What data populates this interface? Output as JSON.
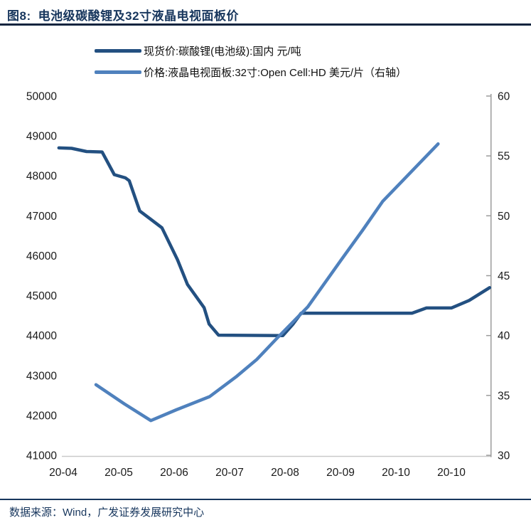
{
  "header": {
    "figure_label": "图8:",
    "title": "电池级碳酸锂及32寸液晶电视面板价"
  },
  "footer": {
    "source": "数据来源：Wind，广发证券发展研究中心"
  },
  "colors": {
    "accent_text": "#17365d",
    "dark_series": "#235081",
    "light_series": "#4f81bd",
    "right_axis_line": "#9b9b9b",
    "bottom_axis_line": "#c9c9c9",
    "tick_text": "#1a1a1a"
  },
  "chart_data": {
    "type": "line",
    "title": "电池级碳酸锂及32寸液晶电视面板价",
    "x_unit": "month-index: 0 = first x tick label, 1 = second, ...",
    "x_tick_labels": [
      "20-04",
      "20-05",
      "20-06",
      "20-07",
      "20-08",
      "20-09",
      "20-10",
      "20-10"
    ],
    "y_left": {
      "min": 41000,
      "max": 50000,
      "step": 1000
    },
    "y_right": {
      "min": 30,
      "max": 60,
      "step": 5
    },
    "grid": false,
    "legend_position": "top-left",
    "series": [
      {
        "name": "现货价:碳酸锂(电池级):国内 元/吨",
        "axis": "left",
        "color": "#235081",
        "points": [
          [
            -0.08,
            48700
          ],
          [
            0.15,
            48690
          ],
          [
            0.42,
            48610
          ],
          [
            0.7,
            48600
          ],
          [
            0.92,
            48030
          ],
          [
            1.12,
            47950
          ],
          [
            1.19,
            47880
          ],
          [
            1.38,
            47120
          ],
          [
            1.59,
            46900
          ],
          [
            1.78,
            46700
          ],
          [
            2.06,
            45900
          ],
          [
            2.24,
            45280
          ],
          [
            2.54,
            44700
          ],
          [
            2.63,
            44290
          ],
          [
            2.8,
            44010
          ],
          [
            3.96,
            44000
          ],
          [
            4.14,
            44280
          ],
          [
            4.29,
            44560
          ],
          [
            6.29,
            44560
          ],
          [
            6.55,
            44690
          ],
          [
            7.0,
            44690
          ],
          [
            7.32,
            44880
          ],
          [
            7.69,
            45200
          ]
        ]
      },
      {
        "name": "价格:液晶电视面板:32寸:Open Cell:HD 美元/片（右轴）",
        "axis": "right",
        "color": "#4f81bd",
        "points": [
          [
            0.59,
            35.9
          ],
          [
            1.1,
            34.3
          ],
          [
            1.58,
            32.9
          ],
          [
            2.04,
            33.8
          ],
          [
            2.64,
            34.9
          ],
          [
            3.13,
            36.6
          ],
          [
            3.49,
            38.0
          ],
          [
            3.86,
            39.8
          ],
          [
            4.41,
            42.4
          ],
          [
            5.01,
            46.3
          ],
          [
            5.4,
            48.8
          ],
          [
            5.76,
            51.2
          ],
          [
            6.26,
            53.6
          ],
          [
            6.76,
            56.0
          ]
        ]
      }
    ]
  }
}
